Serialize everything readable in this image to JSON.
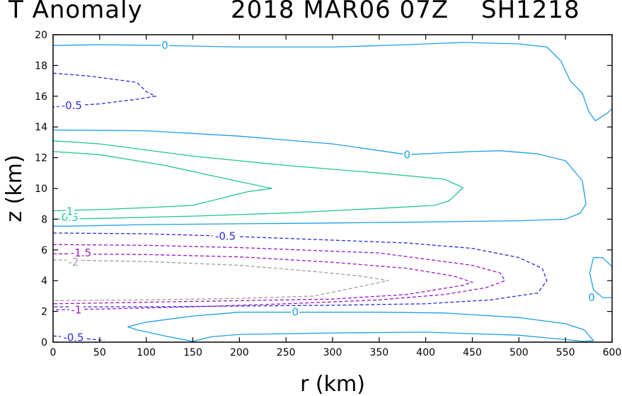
{
  "title": {
    "left": "T Anomaly",
    "date": "2018 MAR06 07Z",
    "storm": "SH1218"
  },
  "chart_data": {
    "type": "contour",
    "title": "T Anomaly 2018 MAR06 07Z SH1218",
    "xlabel": "r (km)",
    "ylabel": "z (km)",
    "xlim": [
      0,
      600
    ],
    "ylim": [
      0,
      20
    ],
    "xticks": [
      0,
      50,
      100,
      150,
      200,
      250,
      300,
      350,
      400,
      450,
      500,
      550,
      600
    ],
    "yticks": [
      0,
      2,
      4,
      6,
      8,
      10,
      12,
      14,
      16,
      18,
      20
    ],
    "colors": {
      "0": "#1e9fe6",
      "1": "#22c49a",
      "0.5": "#22c49a",
      "-0.5": "#2b2bd4",
      "-1": "#9a17c8",
      "-1.5": "#9a17c8",
      "-2": "#9e9e9e"
    },
    "contours": [
      {
        "level": "0",
        "style": "solid",
        "label": "0",
        "label_at": [
          120,
          19.3
        ],
        "points": [
          [
            0,
            19.3
          ],
          [
            50,
            19.35
          ],
          [
            120,
            19.3
          ],
          [
            200,
            19.2
          ],
          [
            300,
            19.2
          ],
          [
            380,
            19.35
          ],
          [
            440,
            19.5
          ],
          [
            500,
            19.4
          ],
          [
            530,
            19.2
          ],
          [
            545,
            18.3
          ],
          [
            555,
            17.0
          ],
          [
            568,
            16.2
          ],
          [
            575,
            15.0
          ],
          [
            582,
            14.4
          ],
          [
            595,
            14.9
          ],
          [
            600,
            15.2
          ]
        ]
      },
      {
        "level": "0",
        "style": "solid",
        "label": "0",
        "label_at": [
          380,
          12.2
        ],
        "points": [
          [
            0,
            13.8
          ],
          [
            100,
            13.75
          ],
          [
            200,
            13.4
          ],
          [
            300,
            12.9
          ],
          [
            380,
            12.2
          ],
          [
            450,
            12.4
          ],
          [
            480,
            12.45
          ],
          [
            520,
            12.25
          ],
          [
            550,
            11.8
          ],
          [
            568,
            10.5
          ],
          [
            572,
            9.0
          ],
          [
            566,
            8.4
          ],
          [
            550,
            8.0
          ],
          [
            500,
            7.9
          ],
          [
            380,
            7.8
          ],
          [
            300,
            7.75
          ],
          [
            200,
            7.7
          ],
          [
            100,
            7.65
          ],
          [
            20,
            7.55
          ],
          [
            0,
            7.55
          ]
        ]
      },
      {
        "level": "0.5",
        "style": "solid",
        "label": "0.5",
        "label_at": [
          18,
          8.1
        ],
        "points": [
          [
            0,
            13.1
          ],
          [
            50,
            12.9
          ],
          [
            150,
            12.1
          ],
          [
            250,
            11.5
          ],
          [
            350,
            11.0
          ],
          [
            420,
            10.6
          ],
          [
            440,
            10.05
          ],
          [
            425,
            9.2
          ],
          [
            410,
            8.9
          ],
          [
            350,
            8.7
          ],
          [
            250,
            8.4
          ],
          [
            150,
            8.2
          ],
          [
            50,
            8.05
          ],
          [
            0,
            8.0
          ]
        ]
      },
      {
        "level": "1",
        "style": "solid",
        "label": "1",
        "label_at": [
          18,
          8.5
        ],
        "points": [
          [
            0,
            12.4
          ],
          [
            50,
            12.2
          ],
          [
            120,
            11.5
          ],
          [
            180,
            10.7
          ],
          [
            235,
            10.0
          ],
          [
            210,
            9.8
          ],
          [
            150,
            8.9
          ],
          [
            100,
            8.75
          ],
          [
            50,
            8.62
          ],
          [
            0,
            8.55
          ]
        ]
      },
      {
        "level": "-0.5",
        "style": "dashed",
        "label": "-0.5",
        "label_at": [
          20,
          15.4
        ],
        "points": [
          [
            0,
            17.5
          ],
          [
            40,
            17.3
          ],
          [
            90,
            16.9
          ],
          [
            100,
            16.3
          ],
          [
            110,
            16.0
          ],
          [
            90,
            15.8
          ],
          [
            50,
            15.5
          ],
          [
            0,
            15.3
          ]
        ]
      },
      {
        "level": "-0.5",
        "style": "dashed",
        "label": "-0.5",
        "label_at": [
          185,
          6.9
        ],
        "points": [
          [
            0,
            7.1
          ],
          [
            100,
            7.05
          ],
          [
            185,
            6.9
          ],
          [
            250,
            6.75
          ],
          [
            380,
            6.45
          ],
          [
            450,
            6.1
          ],
          [
            500,
            5.5
          ],
          [
            525,
            4.8
          ],
          [
            530,
            4.0
          ],
          [
            520,
            3.2
          ],
          [
            470,
            2.75
          ],
          [
            400,
            2.5
          ],
          [
            300,
            2.4
          ],
          [
            200,
            2.35
          ],
          [
            100,
            2.3
          ],
          [
            0,
            2.3
          ]
        ]
      },
      {
        "level": "-1.5",
        "style": "dashed",
        "label": "-1.5",
        "label_at": [
          30,
          5.8
        ],
        "points": [
          [
            0,
            5.75
          ],
          [
            100,
            5.7
          ],
          [
            200,
            5.55
          ],
          [
            300,
            5.2
          ],
          [
            380,
            4.8
          ],
          [
            430,
            4.3
          ],
          [
            450,
            3.9
          ],
          [
            440,
            3.7
          ],
          [
            380,
            3.1
          ],
          [
            300,
            2.8
          ],
          [
            200,
            2.7
          ],
          [
            100,
            2.6
          ],
          [
            0,
            2.5
          ]
        ]
      },
      {
        "level": "-1",
        "style": "dashed",
        "label": "-1",
        "label_at": [
          25,
          2.1
        ],
        "points": [
          [
            0,
            6.35
          ],
          [
            100,
            6.3
          ],
          [
            200,
            6.15
          ],
          [
            350,
            5.8
          ],
          [
            450,
            5.0
          ],
          [
            480,
            4.5
          ],
          [
            485,
            4.0
          ],
          [
            465,
            3.55
          ],
          [
            420,
            3.1
          ],
          [
            350,
            2.75
          ],
          [
            250,
            2.5
          ],
          [
            150,
            2.3
          ],
          [
            50,
            2.15
          ],
          [
            0,
            2.1
          ]
        ]
      },
      {
        "level": "-2",
        "style": "dashed",
        "label": "-2",
        "label_at": [
          22,
          5.2
        ],
        "points": [
          [
            0,
            5.35
          ],
          [
            100,
            5.25
          ],
          [
            200,
            5.0
          ],
          [
            280,
            4.6
          ],
          [
            330,
            4.3
          ],
          [
            360,
            4.0
          ],
          [
            280,
            3.0
          ],
          [
            200,
            2.85
          ],
          [
            100,
            2.75
          ],
          [
            0,
            2.7
          ]
        ]
      },
      {
        "level": "0",
        "style": "solid",
        "label": "0",
        "label_at": [
          260,
          1.95
        ],
        "points": [
          [
            80,
            1.0
          ],
          [
            100,
            1.3
          ],
          [
            150,
            1.7
          ],
          [
            200,
            1.95
          ],
          [
            260,
            1.95
          ],
          [
            350,
            1.95
          ],
          [
            420,
            1.9
          ],
          [
            500,
            1.6
          ],
          [
            550,
            1.2
          ],
          [
            570,
            0.8
          ],
          [
            580,
            0.1
          ],
          [
            570,
            0.05
          ],
          [
            500,
            0.45
          ],
          [
            400,
            0.65
          ],
          [
            300,
            0.6
          ],
          [
            200,
            0.5
          ],
          [
            170,
            0.35
          ],
          [
            150,
            0.05
          ],
          [
            120,
            0.4
          ],
          [
            90,
            0.8
          ],
          [
            80,
            1.0
          ]
        ]
      },
      {
        "level": "-0.5",
        "style": "dashed",
        "label": "-0.5",
        "label_at": [
          22,
          0.3
        ],
        "points": [
          [
            0,
            0.4
          ],
          [
            15,
            0.35
          ],
          [
            40,
            0.2
          ],
          [
            55,
            0.1
          ]
        ]
      },
      {
        "level": "0",
        "style": "solid",
        "label": "0",
        "label_at": [
          578,
          2.9
        ],
        "points": [
          [
            600,
            2.9
          ],
          [
            590,
            2.9
          ],
          [
            580,
            3.4
          ],
          [
            576,
            4.5
          ],
          [
            580,
            5.5
          ],
          [
            590,
            5.5
          ],
          [
            600,
            4.9
          ]
        ]
      }
    ]
  }
}
